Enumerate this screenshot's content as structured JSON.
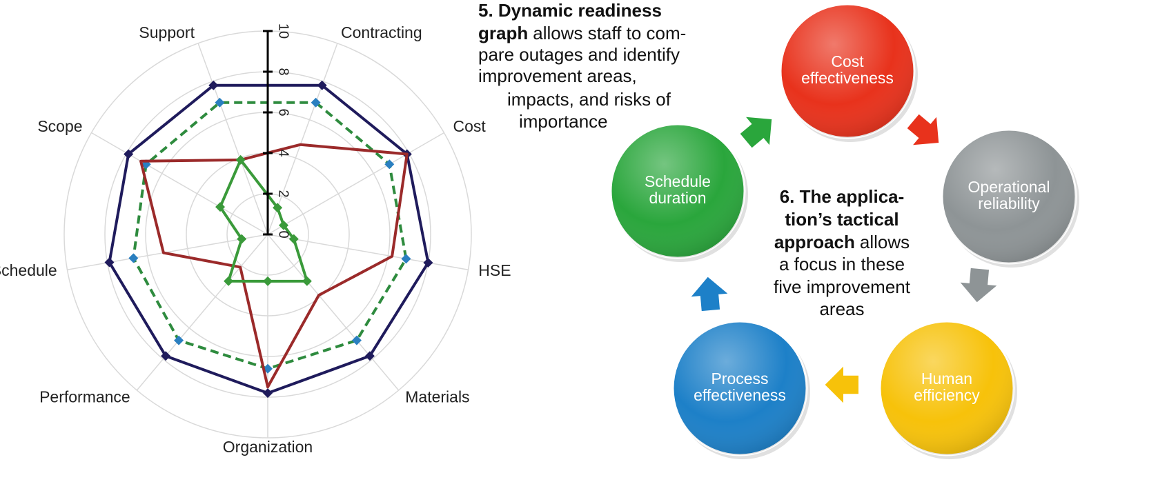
{
  "chart_data": {
    "type": "radar",
    "categories": [
      "Contracting",
      "Cost",
      "HSE",
      "Materials",
      "Organization",
      "Performance",
      "Schedule",
      "Scope",
      "Support"
    ],
    "ylim": [
      0,
      10
    ],
    "yticks": [
      0,
      2,
      4,
      6,
      8,
      10
    ],
    "grid": true,
    "series": [
      {
        "color": "#1f1b5c",
        "marker": "diamond",
        "marker_color": "#1f1b5c",
        "dash": false,
        "values": [
          7.8,
          7.9,
          8.0,
          7.8,
          7.8,
          7.8,
          7.9,
          7.9,
          7.8
        ]
      },
      {
        "color": "#2e8b3e",
        "marker": "diamond",
        "marker_color": "#2a7fc0",
        "dash": true,
        "values": [
          6.9,
          6.9,
          6.9,
          6.8,
          6.6,
          6.8,
          6.7,
          6.9,
          6.9
        ]
      },
      {
        "color": "#9b2a2a",
        "marker": "none",
        "marker_color": "#9b2a2a",
        "dash": false,
        "values": [
          4.7,
          7.9,
          6.2,
          3.9,
          7.5,
          2.1,
          5.2,
          7.2,
          3.9
        ]
      },
      {
        "color": "#3a9a3a",
        "marker": "diamond",
        "marker_color": "#3a9a3a",
        "dash": false,
        "values": [
          1.4,
          0.9,
          1.3,
          3.0,
          2.3,
          3.0,
          1.3,
          2.7,
          3.9
        ]
      }
    ]
  },
  "caption_5": {
    "lines": [
      {
        "bold": "5. Dynamic readiness"
      },
      {
        "bold": "graph",
        "text": "allows staff to com-"
      },
      {
        "text": "pare outages and identify"
      },
      {
        "text": "improvement areas,"
      },
      {
        "text": "impacts, and risks of"
      },
      {
        "text": "importance"
      }
    ]
  },
  "caption_6": {
    "lines": [
      {
        "bold": "6. The applica-"
      },
      {
        "bold": "tion’s tactical"
      },
      {
        "bold": "approach",
        "text": "allows"
      },
      {
        "text": "a focus in these"
      },
      {
        "text": "five improvement"
      },
      {
        "text": "areas"
      }
    ]
  },
  "diagram": {
    "nodes": [
      {
        "lines": [
          "Cost",
          "effectiveness"
        ],
        "color": "#e8321c"
      },
      {
        "lines": [
          "Operational",
          "reliability"
        ],
        "color": "#8e9496"
      },
      {
        "lines": [
          "Human",
          "efficiency"
        ],
        "color": "#f7c20a"
      },
      {
        "lines": [
          "Process",
          "effectiveness"
        ],
        "color": "#1d80c8"
      },
      {
        "lines": [
          "Schedule",
          "duration"
        ],
        "color": "#2aa63c"
      }
    ]
  }
}
